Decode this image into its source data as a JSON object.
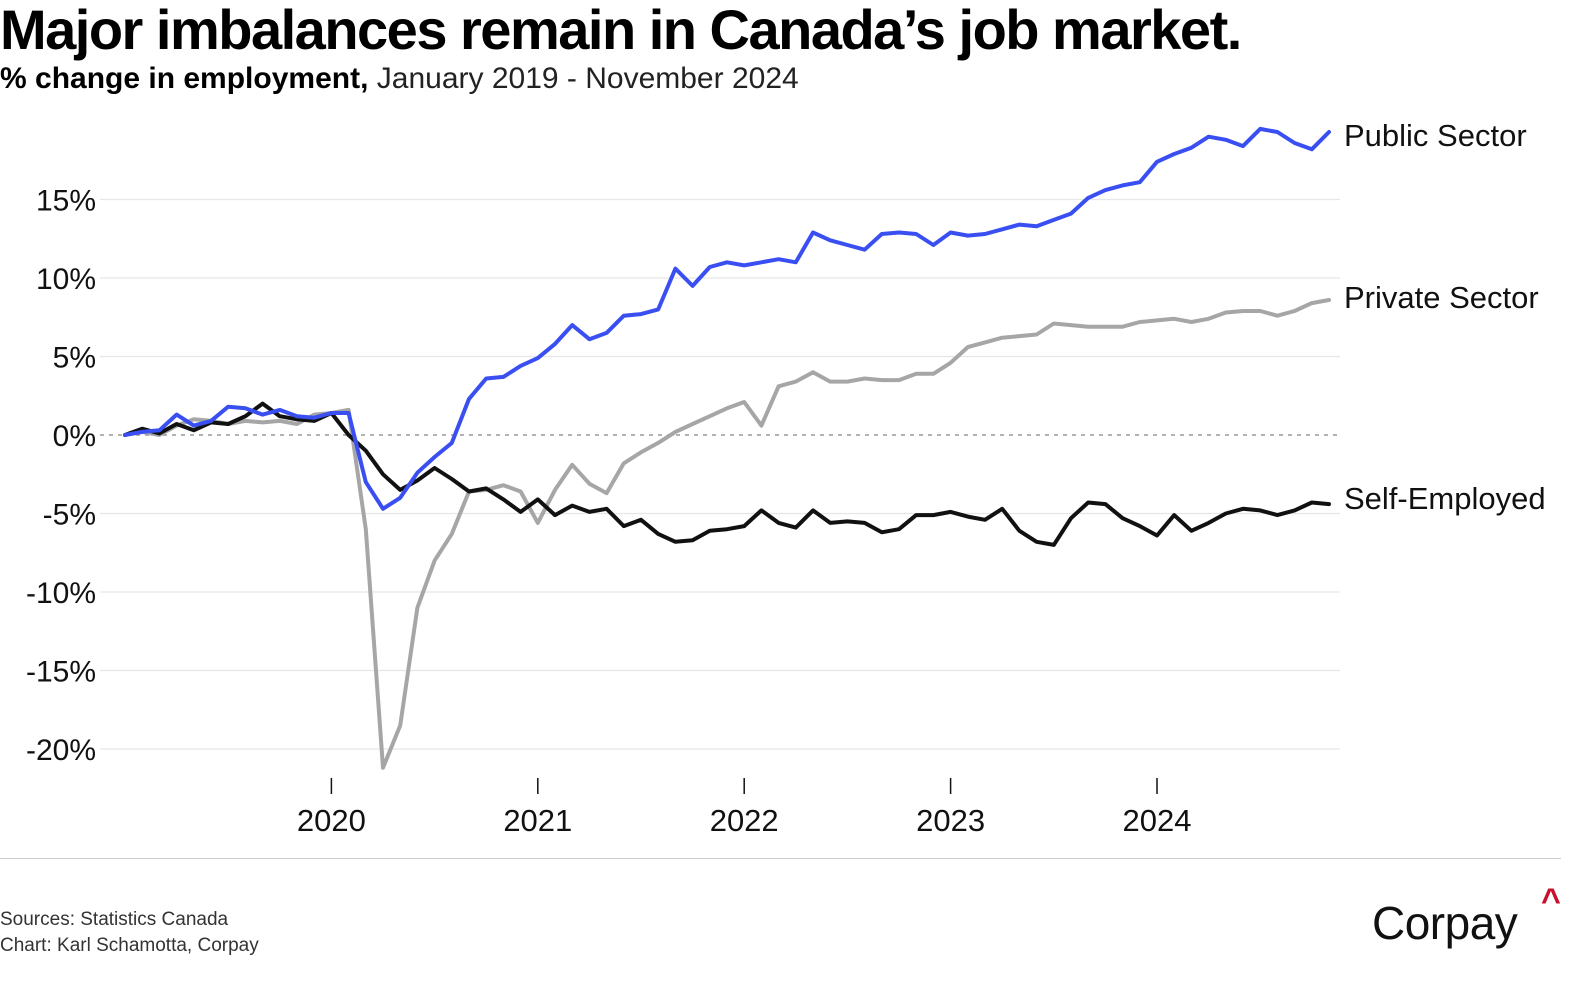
{
  "title": "Major imbalances remain in Canada’s job market.",
  "subtitle_bold": "% change in employment,",
  "subtitle_rest": "January 2019 - November 2024",
  "footer": {
    "sources": "Sources: Statistics Canada",
    "credit": "Chart: Karl Schamotta, Corpay"
  },
  "logo": {
    "text": "Corpay",
    "mark": "^",
    "mark_color": "#c8102e"
  },
  "chart_data": {
    "type": "line",
    "title": "Major imbalances remain in Canada’s job market.",
    "ylabel": "% change in employment",
    "x_start": "2019-01",
    "x_end": "2024-11",
    "ylim": [
      -22,
      20
    ],
    "yticks": [
      15,
      10,
      5,
      0,
      -5,
      -10,
      -15,
      -20
    ],
    "ytick_labels": [
      "15%",
      "10%",
      "5%",
      "0%",
      "-5%",
      "-10%",
      "-15%",
      "-20%"
    ],
    "xticks": [
      "2020",
      "2021",
      "2022",
      "2023",
      "2024"
    ],
    "grid": "horizontal",
    "zero_line": "dotted",
    "legend": "series labels at right end of lines",
    "series": [
      {
        "name": "Public Sector",
        "color": "#3a4ff2",
        "values": [
          0,
          0.2,
          0.3,
          1.3,
          0.6,
          0.9,
          1.8,
          1.7,
          1.3,
          1.6,
          1.2,
          1.1,
          1.4,
          1.4,
          -3.0,
          -4.7,
          -4.0,
          -2.4,
          -1.4,
          -0.5,
          2.3,
          3.6,
          3.7,
          4.4,
          4.9,
          5.8,
          7.0,
          6.1,
          6.5,
          7.6,
          7.7,
          8.0,
          10.6,
          9.5,
          10.7,
          11.0,
          10.8,
          11.0,
          11.2,
          11.0,
          12.9,
          12.4,
          12.1,
          11.8,
          12.8,
          12.9,
          12.8,
          12.1,
          12.9,
          12.7,
          12.8,
          13.1,
          13.4,
          13.3,
          13.7,
          14.1,
          15.1,
          15.6,
          15.9,
          16.1,
          17.4,
          17.9,
          18.3,
          19.0,
          18.8,
          18.4,
          19.5,
          19.3,
          18.6,
          18.2,
          19.3
        ]
      },
      {
        "name": "Private Sector",
        "color": "#a6a6a6",
        "values": [
          0,
          0.2,
          0.0,
          0.6,
          1.0,
          0.9,
          0.7,
          0.9,
          0.8,
          0.9,
          0.7,
          1.3,
          1.4,
          1.6,
          -6.0,
          -21.2,
          -18.5,
          -11.0,
          -8.0,
          -6.3,
          -3.6,
          -3.5,
          -3.2,
          -3.6,
          -5.6,
          -3.5,
          -1.9,
          -3.1,
          -3.7,
          -1.8,
          -1.1,
          -0.5,
          0.2,
          0.7,
          1.2,
          1.7,
          2.1,
          0.6,
          3.1,
          3.4,
          4.0,
          3.4,
          3.4,
          3.6,
          3.5,
          3.5,
          3.9,
          3.9,
          4.6,
          5.6,
          5.9,
          6.2,
          6.3,
          6.4,
          7.1,
          7.0,
          6.9,
          6.9,
          6.9,
          7.2,
          7.3,
          7.4,
          7.2,
          7.4,
          7.8,
          7.9,
          7.9,
          7.6,
          7.9,
          8.4,
          8.6
        ]
      },
      {
        "name": "Self-Employed",
        "color": "#111111",
        "values": [
          0,
          0.4,
          0.1,
          0.7,
          0.3,
          0.8,
          0.7,
          1.2,
          2.0,
          1.2,
          1.0,
          0.9,
          1.4,
          0.0,
          -1.0,
          -2.5,
          -3.5,
          -2.9,
          -2.1,
          -2.8,
          -3.6,
          -3.4,
          -4.1,
          -4.9,
          -4.1,
          -5.1,
          -4.5,
          -4.9,
          -4.7,
          -5.8,
          -5.4,
          -6.3,
          -6.8,
          -6.7,
          -6.1,
          -6.0,
          -5.8,
          -4.8,
          -5.6,
          -5.9,
          -4.8,
          -5.6,
          -5.5,
          -5.6,
          -6.2,
          -6.0,
          -5.1,
          -5.1,
          -4.9,
          -5.2,
          -5.4,
          -4.7,
          -6.1,
          -6.8,
          -7.0,
          -5.3,
          -4.3,
          -4.4,
          -5.3,
          -5.8,
          -6.4,
          -5.1,
          -6.1,
          -5.6,
          -5.0,
          -4.7,
          -4.8,
          -5.1,
          -4.8,
          -4.3,
          -4.4
        ]
      }
    ]
  }
}
